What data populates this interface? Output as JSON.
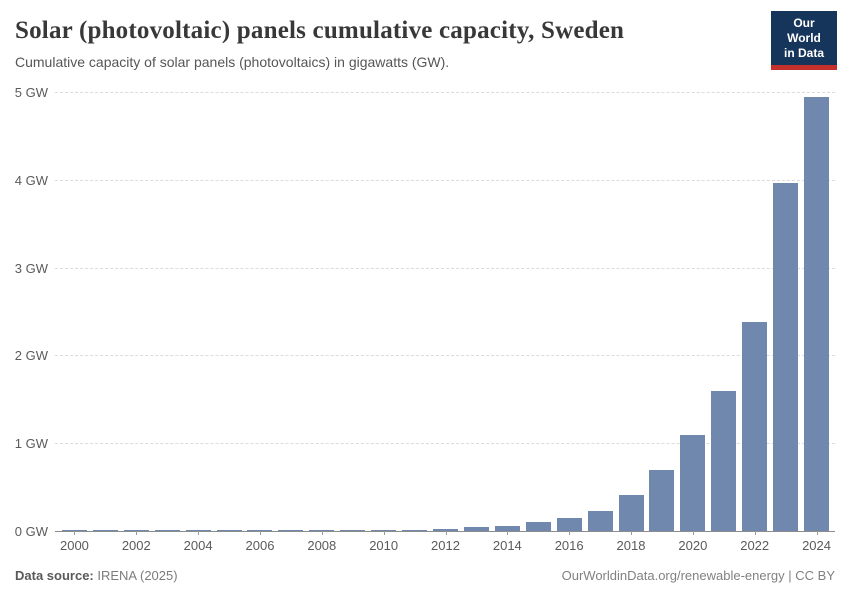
{
  "header": {
    "title": "Solar (photovoltaic) panels cumulative capacity, Sweden",
    "subtitle": "Cumulative capacity of solar panels (photovoltaics) in gigawatts (GW).",
    "logo_line1": "Our World",
    "logo_line2": "in Data"
  },
  "footer": {
    "source_label": "Data source:",
    "source_value": " IRENA (2025)",
    "credit": "OurWorldinData.org/renewable-energy | CC BY"
  },
  "chart_data": {
    "type": "bar",
    "title": "Solar (photovoltaic) panels cumulative capacity, Sweden",
    "unit": "GW",
    "categories": [
      2000,
      2001,
      2002,
      2003,
      2004,
      2005,
      2006,
      2007,
      2008,
      2009,
      2010,
      2011,
      2012,
      2013,
      2014,
      2015,
      2016,
      2017,
      2018,
      2019,
      2020,
      2021,
      2022,
      2023,
      2024
    ],
    "values": [
      0.003,
      0.003,
      0.003,
      0.004,
      0.004,
      0.004,
      0.005,
      0.006,
      0.008,
      0.009,
      0.011,
      0.012,
      0.024,
      0.043,
      0.06,
      0.104,
      0.153,
      0.231,
      0.411,
      0.698,
      1.09,
      1.59,
      2.38,
      3.96,
      4.94
    ],
    "xlabel": "",
    "ylabel": "",
    "ylim": [
      0,
      5
    ],
    "ytick_step": 1,
    "ytick_suffix": " GW",
    "xtick_every": 2,
    "grid": "horizontal-dashed",
    "legend": "none",
    "bar_color": "#7088ad"
  },
  "colors": {
    "bar": "#7088ad",
    "gridline": "#dcdcdc",
    "zero_axis": "#8c8c8c",
    "tick_label": "#5b5b5b",
    "title_text": "#383838",
    "subtitle_text": "#565656",
    "logo_background": "#16355a",
    "logo_accent": "#c5302c",
    "footer_text": "#7c7c7c"
  }
}
